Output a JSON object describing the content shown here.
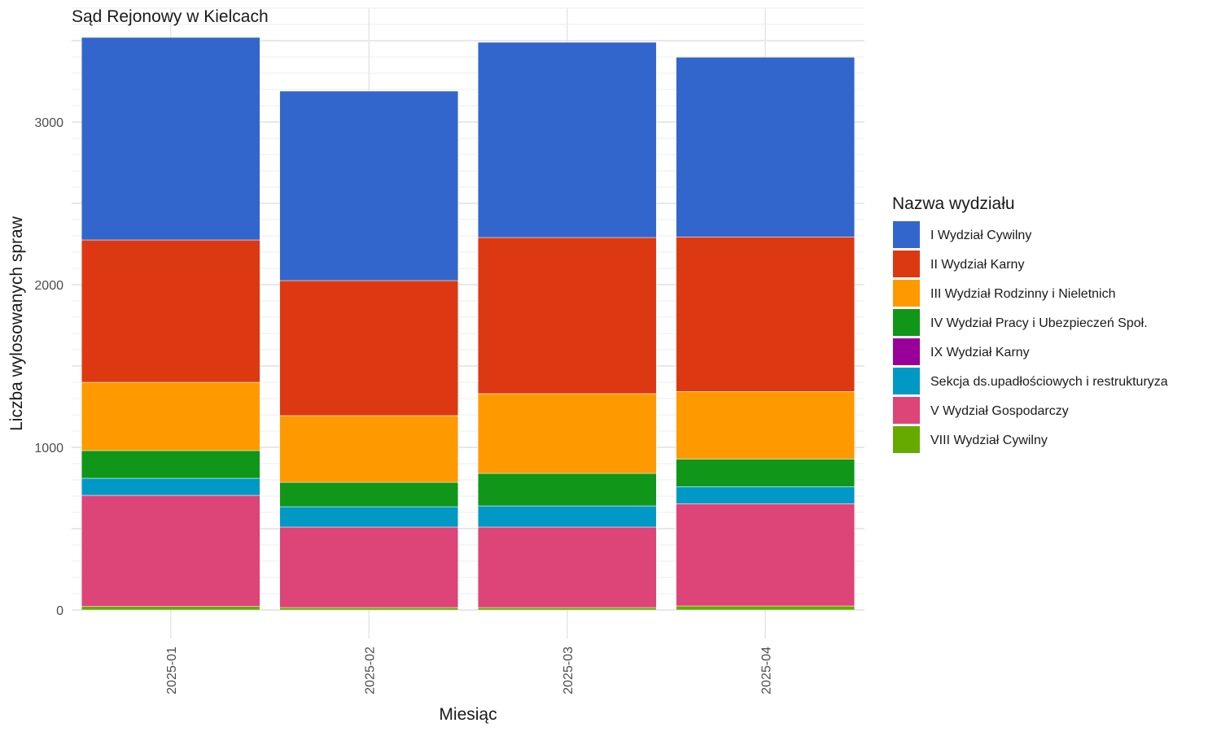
{
  "chart_data": {
    "type": "bar",
    "stacked": true,
    "title": "Sąd Rejonowy w Kielcach",
    "xlabel": "Miesiąc",
    "ylabel": "Liczba wylosowanych spraw",
    "categories": [
      "2025-01",
      "2025-02",
      "2025-03",
      "2025-04"
    ],
    "ylim": [
      0,
      3700
    ],
    "yticks": [
      0,
      1000,
      2000,
      3000
    ],
    "grid": true,
    "x_tick_rotation": -90,
    "legend": {
      "title": "Nazwa wydziału",
      "position": "right"
    },
    "series": [
      {
        "name": "VIII Wydział Cywilny",
        "color": "#66aa00",
        "values": [
          22,
          15,
          15,
          25
        ]
      },
      {
        "name": "V Wydział Gospodarczy",
        "color": "#dd4477",
        "values": [
          683,
          495,
          495,
          628
        ]
      },
      {
        "name": "Sekcja ds.upadłościowych i restrukturyza",
        "color": "#0099c6",
        "values": [
          105,
          125,
          130,
          105
        ]
      },
      {
        "name": "IX Wydział Karny",
        "color": "#990099",
        "values": [
          0,
          0,
          0,
          0
        ]
      },
      {
        "name": "IV Wydział Pracy i Ubezpieczeń Społ.",
        "color": "#109618",
        "values": [
          170,
          150,
          200,
          170
        ]
      },
      {
        "name": "III Wydział Rodzinny i Nieletnich",
        "color": "#ff9900",
        "values": [
          420,
          410,
          490,
          415
        ]
      },
      {
        "name": "II Wydział Karny",
        "color": "#dc3912",
        "values": [
          875,
          830,
          960,
          950
        ]
      },
      {
        "name": "I Wydział Cywilny",
        "color": "#3366cc",
        "values": [
          1245,
          1165,
          1200,
          1105
        ]
      }
    ]
  }
}
